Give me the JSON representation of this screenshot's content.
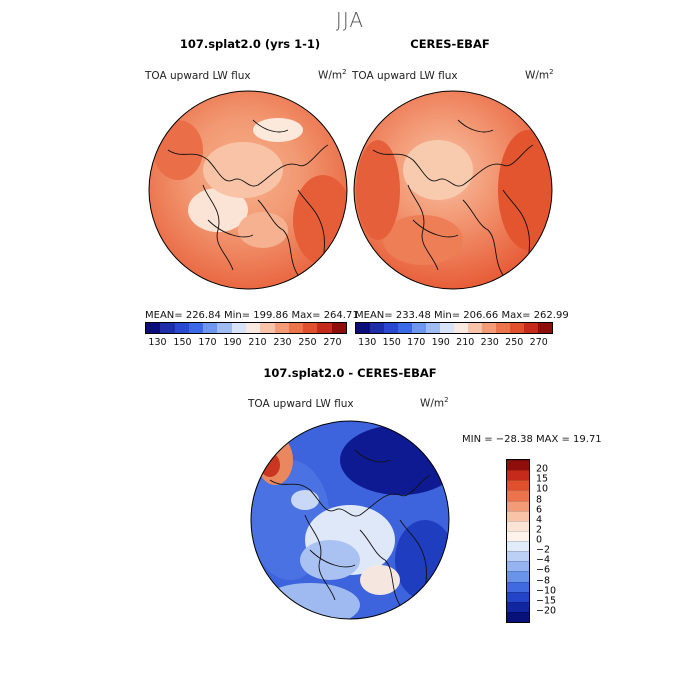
{
  "title": "JJA",
  "panels": [
    {
      "title": "107.splat2.0 (yrs 1-1)",
      "variable": "TOA upward LW flux",
      "units": "W/m",
      "units_sup": "2",
      "stats": "MEAN= 226.84   Min= 199.86   Max= 264.71"
    },
    {
      "title": "CERES-EBAF",
      "variable": "TOA upward LW flux",
      "units": "W/m",
      "units_sup": "2",
      "stats": "MEAN= 233.48   Min= 206.66   Max= 262.99"
    },
    {
      "title": "107.splat2.0 - CERES-EBAF",
      "variable": "TOA upward LW flux",
      "units": "W/m",
      "units_sup": "2",
      "stats": "MIN = −28.38  MAX =  19.71"
    }
  ],
  "colorbar_abs": {
    "labels": [
      "130",
      "150",
      "170",
      "190",
      "210",
      "230",
      "250",
      "270"
    ],
    "colors": [
      "#0a0d7a",
      "#1d2ea8",
      "#2a48d0",
      "#3c6ae6",
      "#6e96ee",
      "#9fbcf3",
      "#d7e3f9",
      "#fbeae0",
      "#f8c3a6",
      "#f39a76",
      "#ec744d",
      "#e0502c",
      "#c52a1a",
      "#8f0e0b"
    ]
  },
  "colorbar_diff": {
    "labels": [
      "20",
      "15",
      "10",
      "8",
      "6",
      "4",
      "2",
      "0",
      "−2",
      "−4",
      "−6",
      "−8",
      "−10",
      "−15",
      "−20"
    ],
    "colors": [
      "#8f0e0b",
      "#c52a1a",
      "#e0502c",
      "#ec744d",
      "#f39a76",
      "#f8c3a6",
      "#fbe3d6",
      "#fdf3ea",
      "#e2ebfa",
      "#bcd0f5",
      "#94b3f0",
      "#6a93ea",
      "#3f6ae0",
      "#2344c6",
      "#1226a2",
      "#08107a"
    ]
  }
}
